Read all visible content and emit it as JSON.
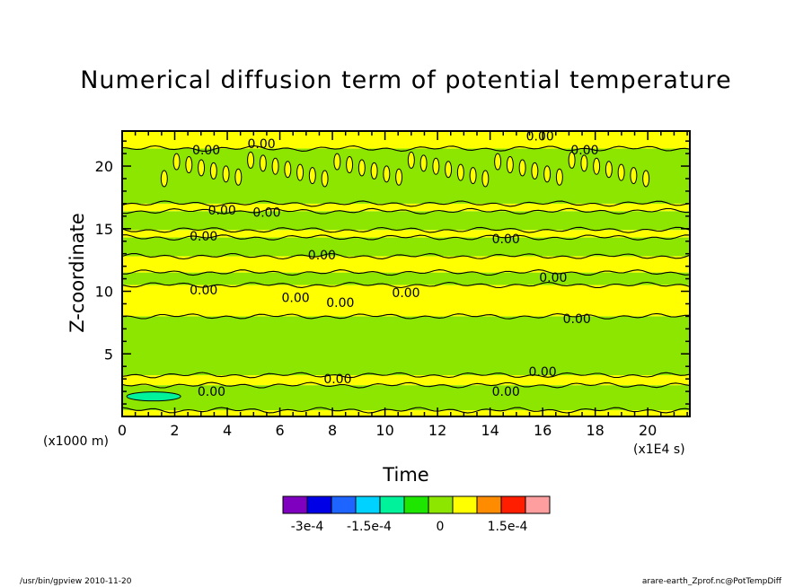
{
  "title": "Numerical diffusion term of potential temperature",
  "footer": {
    "left": "/usr/bin/gpview  2010-11-20",
    "right": "arare-earth_Zprof.nc@PotTempDiff"
  },
  "chart_data": {
    "type": "heatmap",
    "title": "Numerical diffusion term of potential temperature",
    "xlabel": "Time",
    "ylabel": "Z-coordinate",
    "x_unit": "(x1E4 s)",
    "y_unit": "(x1000 m)",
    "xlim": [
      0,
      21.6
    ],
    "ylim": [
      0,
      22.8
    ],
    "xticks": [
      0,
      2,
      4,
      6,
      8,
      10,
      12,
      14,
      16,
      18,
      20
    ],
    "yticks": [
      5,
      10,
      15,
      20
    ],
    "contour_label": "0.00",
    "contour_label_positions": [
      [
        15.9,
        22.4
      ],
      [
        3.2,
        21.3
      ],
      [
        5.3,
        21.8
      ],
      [
        17.6,
        21.3
      ],
      [
        3.8,
        16.5
      ],
      [
        5.5,
        16.3
      ],
      [
        3.1,
        14.4
      ],
      [
        14.6,
        14.2
      ],
      [
        7.6,
        12.9
      ],
      [
        16.4,
        11.1
      ],
      [
        3.1,
        10.1
      ],
      [
        6.6,
        9.5
      ],
      [
        8.3,
        9.1
      ],
      [
        10.8,
        9.9
      ],
      [
        17.3,
        7.8
      ],
      [
        8.2,
        3.0
      ],
      [
        16.0,
        3.6
      ],
      [
        3.4,
        2.0
      ],
      [
        14.6,
        2.0
      ]
    ],
    "colorbar": {
      "colors": [
        "#7f00bf",
        "#0000e6",
        "#1e64ff",
        "#00d2ff",
        "#00f29a",
        "#1ee600",
        "#8ce600",
        "#ffff00",
        "#ff8c00",
        "#ff1e00",
        "#ff9e9e"
      ],
      "labels": [
        "-3e-4",
        "-1.5e-4",
        "0",
        "1.5e-4"
      ]
    },
    "bands": [
      {
        "from": 0.0,
        "to": 0.5,
        "value": "positive"
      },
      {
        "from": 0.5,
        "to": 2.5,
        "value": "negative"
      },
      {
        "from": 2.5,
        "to": 3.3,
        "value": "positive"
      },
      {
        "from": 3.3,
        "to": 8.0,
        "value": "negative"
      },
      {
        "from": 8.0,
        "to": 10.5,
        "value": "positive"
      },
      {
        "from": 10.5,
        "to": 11.5,
        "value": "negative"
      },
      {
        "from": 11.5,
        "to": 12.8,
        "value": "positive"
      },
      {
        "from": 12.8,
        "to": 14.3,
        "value": "negative"
      },
      {
        "from": 14.3,
        "to": 14.9,
        "value": "positive"
      },
      {
        "from": 14.9,
        "to": 16.4,
        "value": "negative"
      },
      {
        "from": 16.4,
        "to": 17.0,
        "value": "positive"
      },
      {
        "from": 17.0,
        "to": 21.4,
        "value": "negative"
      },
      {
        "from": 21.4,
        "to": 22.8,
        "value": "positive"
      }
    ]
  }
}
